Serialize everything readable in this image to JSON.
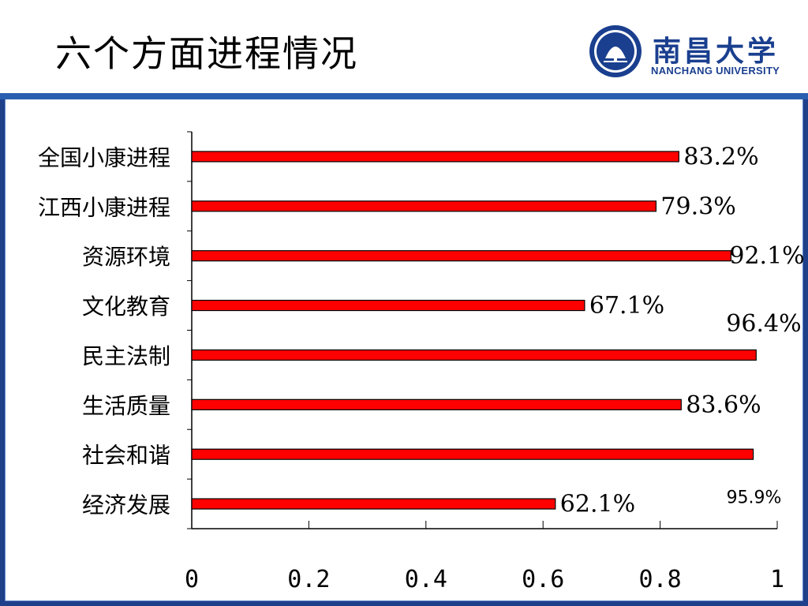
{
  "header": {
    "title": "六个方面进程情况"
  },
  "logo": {
    "name_cn": "南昌大学",
    "name_en": "NANCHANG UNIVERSITY",
    "seal_text": "NANCHANG UNIVERSITY",
    "colors": {
      "brand": "#1a3f8f"
    }
  },
  "colors": {
    "bar_fill": "#ff0000",
    "bar_stroke": "#000000",
    "frame": "#1e3f8a",
    "frame_light": "#2a5fb0"
  },
  "chart_data": {
    "type": "bar",
    "orientation": "horizontal",
    "categories": [
      "全国小康进程",
      "江西小康进程",
      "资源环境",
      "文化教育",
      "民主法制",
      "生活质量",
      "社会和谐",
      "经济发展"
    ],
    "values": [
      0.832,
      0.793,
      0.921,
      0.671,
      0.964,
      0.836,
      0.959,
      0.621
    ],
    "data_labels": [
      "83.2%",
      "79.3%",
      "92.1%",
      "67.1%",
      "96.4%",
      "83.6%",
      "95.9%",
      "62.1%"
    ],
    "xlim": [
      0,
      1
    ],
    "x_ticks": [
      0,
      0.2,
      0.4,
      0.6,
      0.8,
      1
    ],
    "x_tick_labels": [
      "0",
      "0.2",
      "0.4",
      "0.6",
      "0.8",
      "1"
    ],
    "grid": false,
    "legend": "none"
  }
}
